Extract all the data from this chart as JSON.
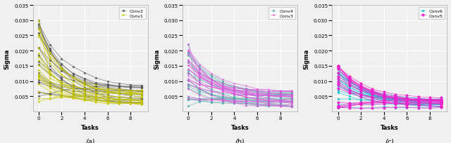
{
  "subplot_a": {
    "title": "(a)",
    "ylabel": "Sigma",
    "xlabel": "Tasks",
    "ylim": [
      0.0,
      0.035
    ],
    "yticks": [
      0.005,
      0.01,
      0.015,
      0.02,
      0.025,
      0.03,
      0.035
    ],
    "xticks": [
      0,
      2,
      4,
      6,
      8
    ],
    "x_range": [
      -0.5,
      9.5
    ],
    "conv1_color": "#c8c800",
    "conv2_color": "#555555",
    "legend_labels": [
      "Conv1",
      "Conv2"
    ],
    "n_lines": 20,
    "seed": 42
  },
  "subplot_b": {
    "title": "(b)",
    "ylabel": "Sigma",
    "xlabel": "Tasks",
    "ylim": [
      0.0,
      0.035
    ],
    "yticks": [
      0.005,
      0.01,
      0.015,
      0.02,
      0.025,
      0.03,
      0.035
    ],
    "xticks": [
      0,
      2,
      4,
      6,
      8
    ],
    "x_range": [
      -0.5,
      9.5
    ],
    "conv3_color": "#dd55dd",
    "conv4_color": "#55aaaa",
    "legend_labels": [
      "Conv3",
      "Conv4"
    ],
    "n_lines": 20,
    "seed": 123
  },
  "subplot_c": {
    "title": "(c)",
    "ylabel": "Sigma",
    "xlabel": "Tasks",
    "ylim": [
      0.0,
      0.035
    ],
    "yticks": [
      0.005,
      0.01,
      0.015,
      0.02,
      0.025,
      0.03,
      0.035
    ],
    "xticks": [
      0,
      2,
      4,
      6,
      8
    ],
    "x_range": [
      -0.5,
      9.5
    ],
    "conv5_color": "#ee22cc",
    "conv6_color": "#00bbcc",
    "legend_labels": [
      "Conv5",
      "Conv6"
    ],
    "n_lines": 20,
    "seed": 77
  },
  "bg_color": "#f0f0f0",
  "grid_color": "#ffffff",
  "figsize": [
    6.4,
    2.05
  ],
  "dpi": 100
}
